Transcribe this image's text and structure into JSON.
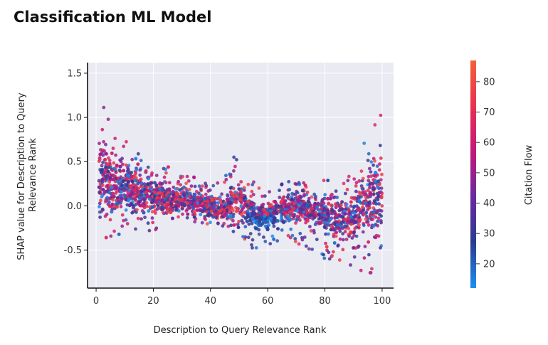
{
  "page": {
    "title": "Classification ML Model"
  },
  "chart_data": {
    "type": "scatter",
    "title": "Classification ML Model",
    "xlabel": "Description to Query Relevance Rank",
    "ylabel": "SHAP value for Description to Query Relevance Rank",
    "xlim": [
      -3,
      104
    ],
    "ylim": [
      -0.93,
      1.62
    ],
    "xticks": [
      0,
      20,
      40,
      60,
      80,
      100
    ],
    "yticks": [
      -0.5,
      0.0,
      0.5,
      1.0,
      1.5
    ],
    "grid": true,
    "legend": "none",
    "background": "#eaeaf2",
    "colorbar": {
      "label": "Citation Flow",
      "range": [
        12,
        87
      ],
      "ticks": [
        20,
        30,
        40,
        50,
        60,
        70,
        80
      ],
      "colors": [
        "#1e8ff0",
        "#2a3b8f",
        "#6a2aa0",
        "#c21a7a",
        "#e8324f",
        "#f4603c"
      ]
    },
    "envelope": {
      "x": [
        1,
        3,
        6,
        10,
        15,
        20,
        25,
        30,
        35,
        40,
        45,
        48,
        50,
        53,
        56,
        60,
        65,
        70,
        75,
        80,
        85,
        90,
        93,
        96,
        98,
        100
      ],
      "upper": [
        1.5,
        1.3,
        1.0,
        0.75,
        0.6,
        0.5,
        0.45,
        0.38,
        0.32,
        0.25,
        0.35,
        0.62,
        0.65,
        0.35,
        0.25,
        0.18,
        0.25,
        0.3,
        0.25,
        0.3,
        0.3,
        0.45,
        0.75,
        0.95,
        1.1,
        1.12
      ],
      "lower": [
        -0.48,
        -0.42,
        -0.35,
        -0.32,
        -0.3,
        -0.28,
        -0.25,
        -0.22,
        -0.2,
        -0.22,
        -0.28,
        -0.3,
        -0.32,
        -0.45,
        -0.5,
        -0.48,
        -0.4,
        -0.42,
        -0.55,
        -0.6,
        -0.68,
        -0.7,
        -0.74,
        -0.78,
        -0.8,
        -0.75
      ],
      "center": [
        0.3,
        0.3,
        0.25,
        0.2,
        0.15,
        0.12,
        0.08,
        0.06,
        0.04,
        0.0,
        -0.05,
        0.05,
        0.1,
        -0.05,
        -0.1,
        -0.12,
        -0.05,
        0.0,
        -0.05,
        -0.1,
        -0.15,
        -0.12,
        0.0,
        0.1,
        0.15,
        0.1
      ]
    }
  }
}
